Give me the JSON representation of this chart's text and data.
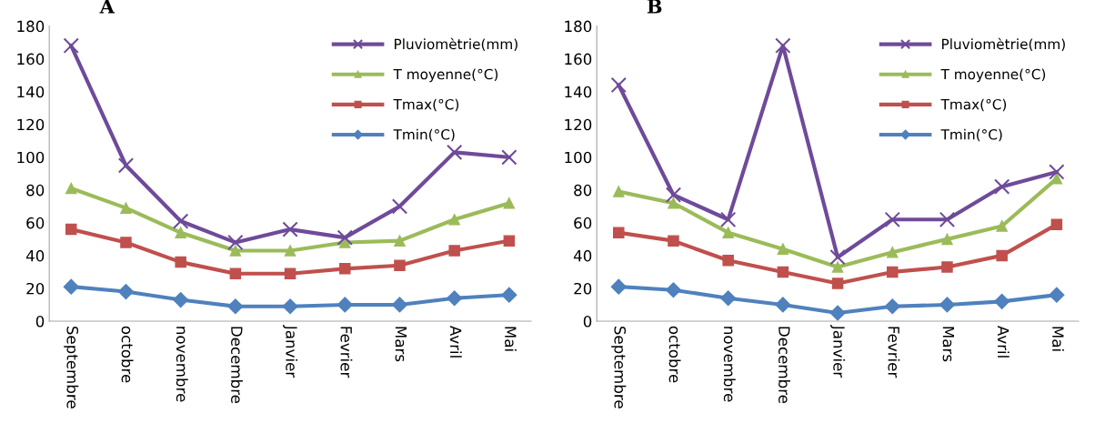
{
  "chart_data": [
    {
      "type": "line",
      "title": "A",
      "categories": [
        "Septembre",
        "octobre",
        "novembre",
        "Decembre",
        "Janvier",
        "Fevrier",
        "Mars",
        "Avril",
        "Mai"
      ],
      "ylim": [
        0,
        180
      ],
      "yticks": [
        0,
        20,
        40,
        60,
        80,
        100,
        120,
        140,
        160,
        180
      ],
      "grid": false,
      "legend": "top right",
      "series": [
        {
          "name": "Pluviomètrie(mm)",
          "color": "#6f4a9a",
          "marker": "cross",
          "values": [
            168,
            95,
            61,
            48,
            56,
            51,
            70,
            103,
            100
          ]
        },
        {
          "name": "T moyenne(°C)",
          "color": "#9bbb59",
          "marker": "triangle",
          "values": [
            81,
            69,
            54,
            43,
            43,
            48,
            49,
            62,
            72
          ]
        },
        {
          "name": "Tmax(°C)",
          "color": "#c0504d",
          "marker": "square",
          "values": [
            56,
            48,
            36,
            29,
            29,
            32,
            34,
            43,
            49
          ]
        },
        {
          "name": "Tmin(°C)",
          "color": "#4f81bd",
          "marker": "diamond",
          "values": [
            21,
            18,
            13,
            9,
            9,
            10,
            10,
            14,
            16
          ]
        }
      ]
    },
    {
      "type": "line",
      "title": "B",
      "categories": [
        "Septembre",
        "octobre",
        "novembre",
        "Decembre",
        "Janvier",
        "Fevrier",
        "Mars",
        "Avril",
        "Mai"
      ],
      "ylim": [
        0,
        180
      ],
      "yticks": [
        0,
        20,
        40,
        60,
        80,
        100,
        120,
        140,
        160,
        180
      ],
      "grid": false,
      "legend": "top right",
      "series": [
        {
          "name": "Pluviomètrie(mm)",
          "color": "#6f4a9a",
          "marker": "cross",
          "values": [
            144,
            77,
            62,
            168,
            39,
            62,
            62,
            82,
            91
          ]
        },
        {
          "name": "T moyenne(°C)",
          "color": "#9bbb59",
          "marker": "triangle",
          "values": [
            79,
            72,
            54,
            44,
            33,
            42,
            50,
            58,
            87
          ]
        },
        {
          "name": "Tmax(°C)",
          "color": "#c0504d",
          "marker": "square",
          "values": [
            54,
            49,
            37,
            30,
            23,
            30,
            33,
            40,
            59
          ]
        },
        {
          "name": "Tmin(°C)",
          "color": "#4f81bd",
          "marker": "diamond",
          "values": [
            21,
            19,
            14,
            10,
            5,
            9,
            10,
            12,
            16
          ]
        }
      ]
    }
  ]
}
